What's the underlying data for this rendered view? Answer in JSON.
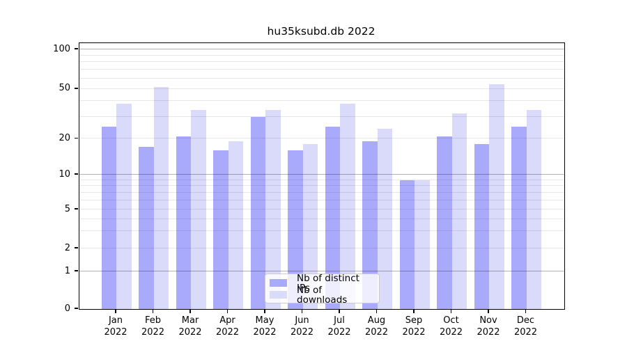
{
  "title": "hu35ksubd.db 2022",
  "chart_data": {
    "type": "bar",
    "title": "hu35ksubd.db 2022",
    "categories": [
      "Jan",
      "Feb",
      "Mar",
      "Apr",
      "May",
      "Jun",
      "Jul",
      "Aug",
      "Sep",
      "Oct",
      "Nov",
      "Dec"
    ],
    "category_year": "2022",
    "series": [
      {
        "name": "Nb of distinct IPs",
        "color": "#aaaafc",
        "values": [
          25,
          17,
          21,
          16,
          30,
          16,
          25,
          19,
          9,
          21,
          18,
          25
        ]
      },
      {
        "name": "Nb of downloads",
        "color": "#dadafb",
        "values": [
          38,
          52,
          34,
          19,
          34,
          18,
          38,
          24,
          9,
          32,
          54,
          34
        ]
      }
    ],
    "y_axis": {
      "scale": "symlog-like",
      "ticks": [
        0,
        1,
        2,
        5,
        10,
        20,
        50,
        100
      ],
      "major_gridlines": [
        1,
        10,
        100
      ],
      "minor_gridlines": [
        2,
        3,
        4,
        5,
        6,
        7,
        8,
        9,
        20,
        30,
        40,
        50,
        60,
        70,
        80,
        90
      ],
      "ylim": [
        0,
        112
      ]
    },
    "legend_position": "lower center",
    "grid": true
  },
  "legend": {
    "entries": [
      {
        "label": "Nb of distinct IPs",
        "color": "#aaaafc"
      },
      {
        "label": "Nb of downloads",
        "color": "#dadafb"
      }
    ]
  }
}
